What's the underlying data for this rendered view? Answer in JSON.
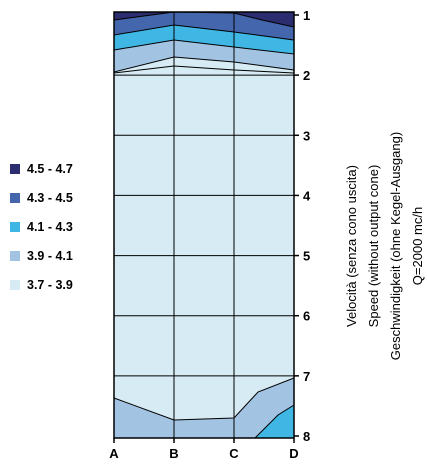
{
  "chart_data": {
    "type": "heatmap",
    "x_ticks": [
      "A",
      "B",
      "C",
      "D"
    ],
    "y_ticks": [
      "1",
      "2",
      "3",
      "4",
      "5",
      "6",
      "7",
      "8"
    ],
    "y_label_lines": [
      "Velocità (senza cono uscita)",
      "Speed (without output cone)",
      "Geschwindigkeit (ohne Kegel-Ausgang)",
      "Q=2000 mc/h"
    ],
    "bands": [
      {
        "label": "4.5 - 4.7",
        "color": "#2b2d6e",
        "range": [
          4.5,
          4.7
        ]
      },
      {
        "label": "4.3 - 4.5",
        "color": "#4466ad",
        "range": [
          4.3,
          4.5
        ]
      },
      {
        "label": "4.1 - 4.3",
        "color": "#3fb6e3",
        "range": [
          4.1,
          4.3
        ]
      },
      {
        "label": "3.9 - 4.1",
        "color": "#a2c3e2",
        "range": [
          3.9,
          4.1
        ]
      },
      {
        "label": "3.7 - 3.9",
        "color": "#d6ebf3",
        "range": [
          3.7,
          3.9
        ]
      }
    ],
    "grid": true
  }
}
